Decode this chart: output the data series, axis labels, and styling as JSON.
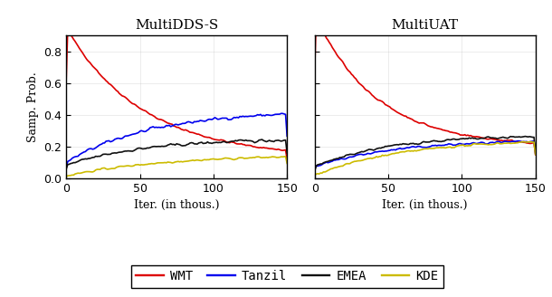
{
  "title_left": "MultiDDS-S",
  "title_right": "MultiUAT",
  "ylabel": "Samp. Prob.",
  "xlabel": "Iter. (in thous.)",
  "xlim": [
    0,
    150
  ],
  "ylim": [
    0,
    0.9
  ],
  "yticks": [
    0.0,
    0.2,
    0.4,
    0.6,
    0.8
  ],
  "xticks": [
    0,
    50,
    100,
    150
  ],
  "colors": {
    "WMT": "#dd0000",
    "Tanzil": "#0000ee",
    "EMEA": "#111111",
    "KDE": "#ccbb00"
  },
  "legend_labels": [
    "WMT",
    "Tanzil",
    "EMEA",
    "KDE"
  ],
  "figsize": [
    6.1,
    3.28
  ],
  "dpi": 100
}
